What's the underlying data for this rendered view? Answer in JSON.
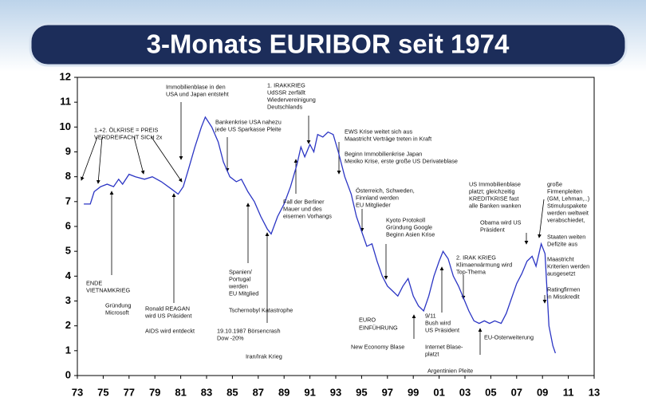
{
  "chart_data": {
    "type": "line",
    "title": "3-Monats EURIBOR seit 1974",
    "x": [
      1973.5,
      1974.0,
      1974.3,
      1974.8,
      1975.3,
      1975.8,
      1976.2,
      1976.5,
      1977.0,
      1977.5,
      1978.2,
      1978.8,
      1979.5,
      1980.3,
      1980.8,
      1981.2,
      1981.6,
      1982.1,
      1982.6,
      1982.9,
      1983.4,
      1983.9,
      1984.3,
      1984.8,
      1985.3,
      1985.7,
      1986.2,
      1986.7,
      1987.2,
      1987.7,
      1988.0,
      1988.5,
      1989.0,
      1989.5,
      1990.0,
      1990.3,
      1990.6,
      1991.0,
      1991.3,
      1991.6,
      1992.0,
      1992.4,
      1992.8,
      1993.2,
      1993.7,
      1994.2,
      1994.6,
      1995.0,
      1995.4,
      1995.8,
      1996.2,
      1996.6,
      1997.0,
      1997.4,
      1997.8,
      1998.2,
      1998.6,
      1999.0,
      1999.4,
      1999.8,
      2000.2,
      2000.6,
      2001.0,
      2001.3,
      2001.7,
      2002.1,
      2002.5,
      2002.9,
      2003.3,
      2003.7,
      2004.1,
      2004.5,
      2004.9,
      2005.3,
      2005.8,
      2006.2,
      2006.6,
      2007.0,
      2007.4,
      2007.8,
      2008.2,
      2008.5,
      2008.9,
      2009.2,
      2009.5,
      2009.8,
      2010.0
    ],
    "series": [
      {
        "color": "#2b35c4",
        "values": [
          6.9,
          6.9,
          7.4,
          7.6,
          7.7,
          7.6,
          7.9,
          7.7,
          8.1,
          8.0,
          7.9,
          8.0,
          7.8,
          7.5,
          7.3,
          7.6,
          8.3,
          9.2,
          10.0,
          10.4,
          10.0,
          9.4,
          8.6,
          8.0,
          7.8,
          7.9,
          7.4,
          7.0,
          6.4,
          5.9,
          5.7,
          6.4,
          6.9,
          7.6,
          8.5,
          9.2,
          8.8,
          9.3,
          9.0,
          9.7,
          9.6,
          9.8,
          9.7,
          9.0,
          8.0,
          7.3,
          6.4,
          5.8,
          5.2,
          5.3,
          4.6,
          4.0,
          3.6,
          3.4,
          3.2,
          3.6,
          3.9,
          3.2,
          2.8,
          2.6,
          3.2,
          4.0,
          4.6,
          5.0,
          4.7,
          4.0,
          3.6,
          3.1,
          2.6,
          2.2,
          2.1,
          2.2,
          2.1,
          2.2,
          2.1,
          2.5,
          3.1,
          3.7,
          4.1,
          4.6,
          4.8,
          4.4,
          5.3,
          4.9,
          2.0,
          1.2,
          0.9
        ]
      }
    ],
    "xlim": [
      1973,
      2013
    ],
    "xticks": [
      {
        "value": 1973,
        "label": "73"
      },
      {
        "value": 1975,
        "label": "75"
      },
      {
        "value": 1977,
        "label": "77"
      },
      {
        "value": 1979,
        "label": "79"
      },
      {
        "value": 1981,
        "label": "81"
      },
      {
        "value": 1983,
        "label": "83"
      },
      {
        "value": 1985,
        "label": "85"
      },
      {
        "value": 1987,
        "label": "87"
      },
      {
        "value": 1989,
        "label": "89"
      },
      {
        "value": 1991,
        "label": "91"
      },
      {
        "value": 1993,
        "label": "93"
      },
      {
        "value": 1995,
        "label": "95"
      },
      {
        "value": 1997,
        "label": "97"
      },
      {
        "value": 1999,
        "label": "99"
      },
      {
        "value": 2001,
        "label": "01"
      },
      {
        "value": 2003,
        "label": "03"
      },
      {
        "value": 2005,
        "label": "05"
      },
      {
        "value": 2007,
        "label": "07"
      },
      {
        "value": 2009,
        "label": "09"
      },
      {
        "value": 2011,
        "label": "11"
      },
      {
        "value": 2013,
        "label": "13"
      }
    ],
    "ylim": [
      0,
      12
    ],
    "yticks": [
      0,
      1,
      2,
      3,
      4,
      5,
      6,
      7,
      8,
      9,
      10,
      11,
      12
    ],
    "annotations": [
      {
        "lines": [
          "1.+2. ÖLKRISE = PREIS",
          "VERDREIFACHT SICH 2x"
        ]
      },
      {
        "lines": [
          "ENDE",
          "VIETNAMKRIEG"
        ]
      },
      {
        "lines": [
          "Gründung",
          "Microsoft"
        ]
      },
      {
        "lines": [
          "Ronald REAGAN",
          "wird US Präsident"
        ]
      },
      {
        "lines": [
          "AIDS wird entdeckt"
        ]
      },
      {
        "lines": [
          "Immobilienblase in den",
          "USA und Japan entsteht"
        ]
      },
      {
        "lines": [
          "Bankenkrise USA nahezu",
          "jede US Sparkasse Pleite"
        ]
      },
      {
        "lines": [
          "Spanien/",
          "Portugal",
          "werden",
          "EU Mitglied"
        ]
      },
      {
        "lines": [
          "Tschernobyl Katastrophe"
        ]
      },
      {
        "lines": [
          "19.10.1987 Börsencrash",
          "Dow -20%"
        ]
      },
      {
        "lines": [
          "Iran/Irak Krieg"
        ]
      },
      {
        "lines": [
          "1. IRAKKRIEG",
          "UdSSR zerfällt",
          "Wiedervereinigung",
          "Deutschlands"
        ]
      },
      {
        "lines": [
          "Fall der Berliner",
          "Mauer und des",
          "eisernen Vorhangs"
        ]
      },
      {
        "lines": [
          "EWS Krise weitet sich aus",
          "Maastricht Verträge treten in Kraft"
        ]
      },
      {
        "lines": [
          "Beginn Immobilienkrise Japan",
          "Mexiko Krise, erste große US Derivateblase"
        ]
      },
      {
        "lines": [
          "Österreich, Schweden,",
          "Finnland werden",
          "EU Mitglieder"
        ]
      },
      {
        "lines": [
          "Kyoto Protokoll",
          "Gründung Google",
          "Beginn Asien Krise"
        ]
      },
      {
        "lines": [
          "EURO",
          "EINFÜHRUNG"
        ]
      },
      {
        "lines": [
          "New Economy Blase"
        ]
      },
      {
        "lines": [
          "9/11",
          "Bush wird",
          "US Präsident"
        ]
      },
      {
        "lines": [
          "Internet Blase-",
          "platzt"
        ]
      },
      {
        "lines": [
          "Argentinien Pleite"
        ]
      },
      {
        "lines": [
          "2. IRAK KRIEG",
          "Klimaerwärmung wird",
          "Top-Thema"
        ]
      },
      {
        "lines": [
          "EU-Osterweiterung"
        ]
      },
      {
        "lines": [
          "US Immobilienblase",
          "platzt; gleichzeitig",
          "KREDITKRISE fast",
          "alle Banken wanken"
        ]
      },
      {
        "lines": [
          "Obama wird US",
          "Präsident"
        ]
      },
      {
        "lines": [
          "große",
          "Firmenpleiten",
          "(GM, Lehman,..)",
          "Stimuluspakete",
          "werden weltweit",
          "verabschiedet,"
        ]
      },
      {
        "lines": [
          "Staaten weiten",
          "Defizite aus"
        ]
      },
      {
        "lines": [
          "Maastricht",
          "Kriterien werden",
          "ausgesetzt"
        ]
      },
      {
        "lines": [
          "Ratingfirmen",
          "in Misskredit"
        ]
      }
    ]
  }
}
